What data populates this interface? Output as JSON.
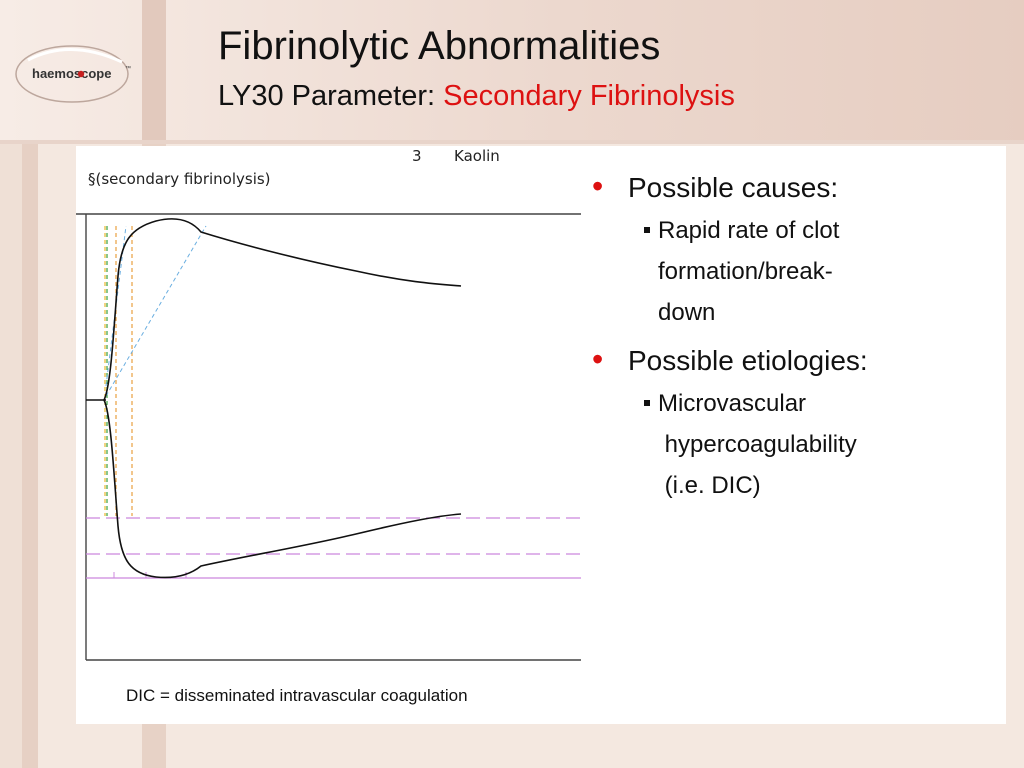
{
  "header": {
    "title": "Fibrinolytic Abnormalities",
    "subtitle_prefix": "LY30 Parameter: ",
    "subtitle_accent": "Secondary Fibrinolysis",
    "accent_color": "#dd1111"
  },
  "logo": {
    "text": "haemoscope",
    "trademark": "™"
  },
  "tracing": {
    "label": "§(secondary fibrinolysis)",
    "channel": "3",
    "activator": "Kaolin"
  },
  "bullets": [
    {
      "heading": "Possible causes:",
      "sub_lines": [
        "Rapid rate of clot",
        "formation/break-",
        "down"
      ]
    },
    {
      "heading": "Possible etiologies:",
      "sub_lines": [
        "Microvascular",
        " hypercoagulability",
        " (i.e. DIC)"
      ]
    }
  ],
  "footnote": "DIC = disseminated intravascular coagulation"
}
